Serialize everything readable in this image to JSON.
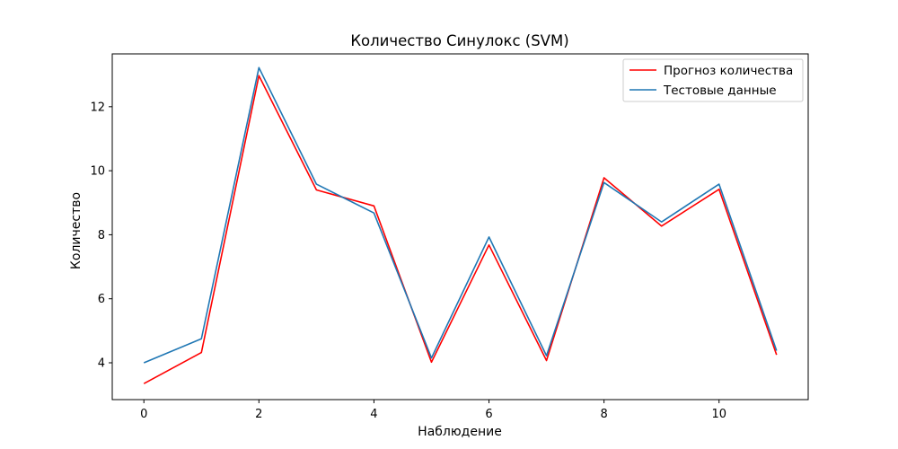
{
  "chart_data": {
    "type": "line",
    "title": "Количество Синулокс  (SVM)",
    "xlabel": "Наблюдение",
    "ylabel": "Количество",
    "x": [
      0,
      1,
      2,
      3,
      4,
      5,
      6,
      7,
      8,
      9,
      10,
      11
    ],
    "xlim": [
      -0.55,
      11.55
    ],
    "ylim": [
      2.85,
      13.65
    ],
    "xticks": [
      0,
      2,
      4,
      6,
      8,
      10
    ],
    "yticks": [
      4,
      6,
      8,
      10,
      12
    ],
    "grid": false,
    "legend_position": "top-right",
    "series": [
      {
        "name": "Прогноз количества",
        "color": "#ff0000",
        "values": [
          3.35,
          4.32,
          12.97,
          9.4,
          8.9,
          4.02,
          7.68,
          4.07,
          9.78,
          8.27,
          9.42,
          4.25
        ]
      },
      {
        "name": "Тестовые данные",
        "color": "#1f77b4",
        "values": [
          4.0,
          4.75,
          13.22,
          9.58,
          8.68,
          4.15,
          7.93,
          4.22,
          9.63,
          8.4,
          9.58,
          4.38
        ]
      }
    ]
  }
}
